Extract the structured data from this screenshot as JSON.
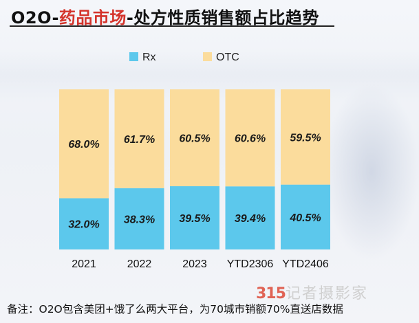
{
  "title": {
    "part1": "O2O-",
    "part2": "药品市场",
    "part3": "-处方性质销售额占比趋势"
  },
  "colors": {
    "rx": "#5cc8ec",
    "otc": "#fbdc9c",
    "title_red": "#d4332b"
  },
  "chart_data": {
    "type": "bar",
    "stacked": true,
    "percent": true,
    "categories": [
      "2021",
      "2022",
      "2023",
      "YTD2306",
      "YTD2406"
    ],
    "series": [
      {
        "name": "Rx",
        "values": [
          32.0,
          38.3,
          39.5,
          39.4,
          40.5
        ],
        "labels": [
          "32.0%",
          "38.3%",
          "39.5%",
          "39.4%",
          "40.5%"
        ]
      },
      {
        "name": "OTC",
        "values": [
          68.0,
          61.7,
          60.5,
          60.6,
          59.5
        ],
        "labels": [
          "68.0%",
          "61.7%",
          "60.5%",
          "60.6%",
          "59.5%"
        ]
      }
    ],
    "ylim": [
      0,
      100
    ],
    "legend_position": "top-center",
    "grid": false
  },
  "footnote": "备注：O2O包含美团+饿了么两大平台，为70城市销额70%直送店数据",
  "watermark": {
    "number": "315",
    "text": "记者摄影家"
  }
}
